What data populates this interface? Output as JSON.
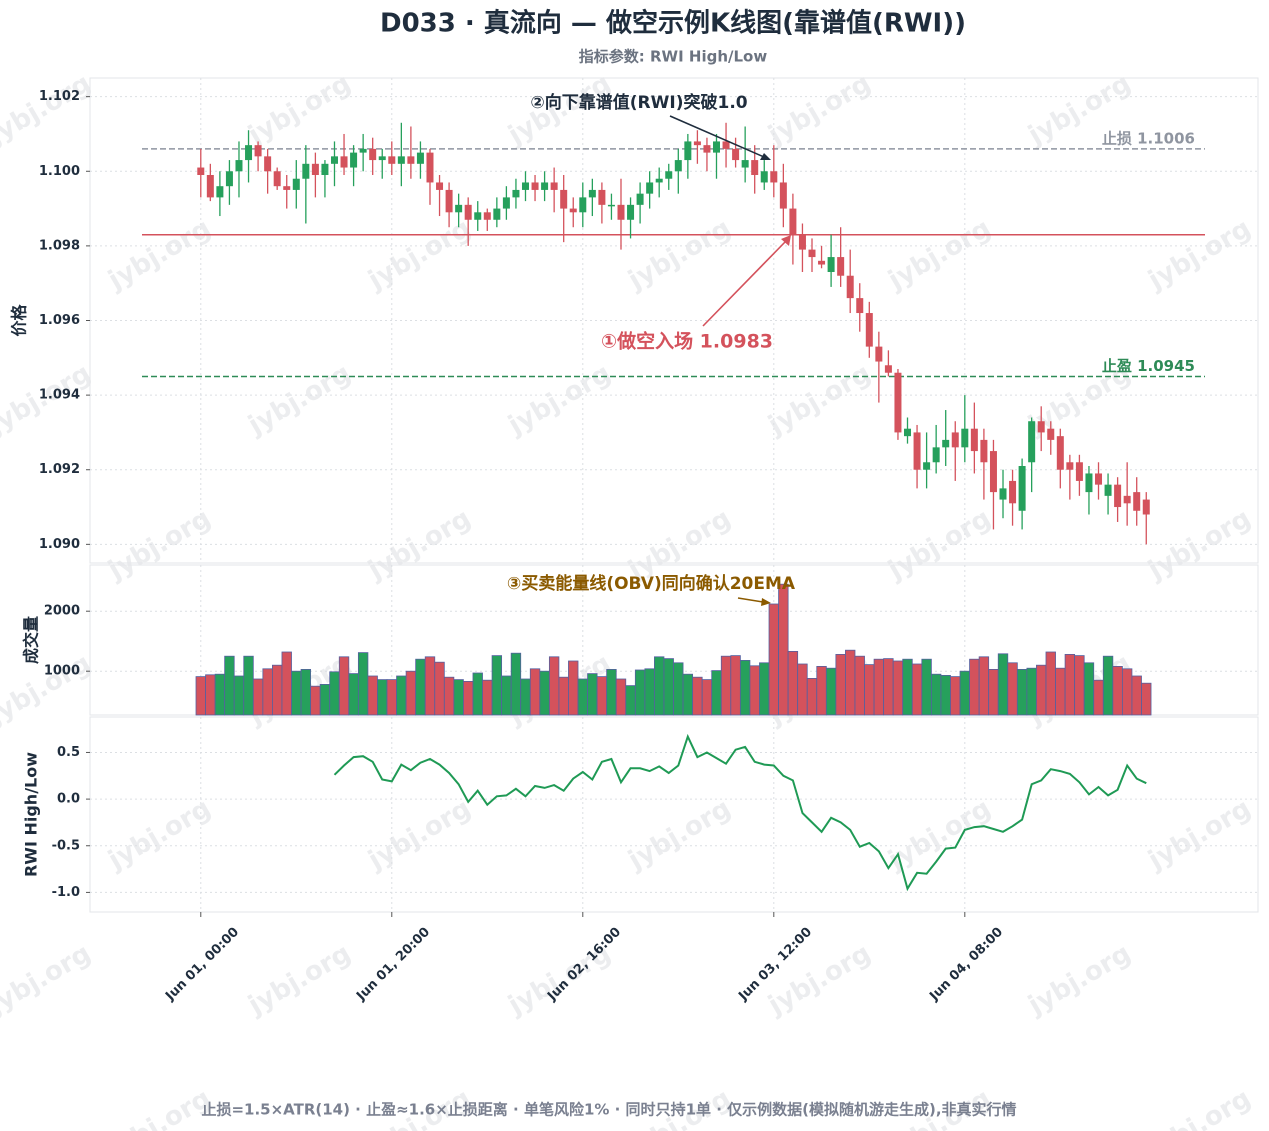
{
  "title": "D033 · 真流向 — 做空示例K线图(靠谱值(RWI))",
  "subtitle": "指标参数: RWI High/Low",
  "footer": "止损=1.5×ATR(14) · 止盈≈1.6×止损距离 · 单笔风险1% · 同时只持1单 · 仅示例数据(模拟随机游走生成),非真实行情",
  "watermark": "jybj.org",
  "chart_data": [
    {
      "type": "candlestick",
      "ylabel": "价格",
      "up_color": "#26a05c",
      "down_color": "#d4525c",
      "grid": true,
      "xlim": [
        -11.6,
        110.7
      ],
      "ylim": [
        1.0895,
        1.1025
      ],
      "yticks": [
        {
          "value": 1.09,
          "label": "1.090"
        },
        {
          "value": 1.092,
          "label": "1.092"
        },
        {
          "value": 1.094,
          "label": "1.094"
        },
        {
          "value": 1.096,
          "label": "1.096"
        },
        {
          "value": 1.098,
          "label": "1.098"
        },
        {
          "value": 1.1,
          "label": "1.100"
        },
        {
          "value": 1.102,
          "label": "1.102"
        }
      ],
      "x": [
        0,
        1,
        2,
        3,
        4,
        5,
        6,
        7,
        8,
        9,
        10,
        11,
        12,
        13,
        14,
        15,
        16,
        17,
        18,
        19,
        20,
        21,
        22,
        23,
        24,
        25,
        26,
        27,
        28,
        29,
        30,
        31,
        32,
        33,
        34,
        35,
        36,
        37,
        38,
        39,
        40,
        41,
        42,
        43,
        44,
        45,
        46,
        47,
        48,
        49,
        50,
        51,
        52,
        53,
        54,
        55,
        56,
        57,
        58,
        59,
        60,
        61,
        62,
        63,
        64,
        65,
        66,
        67,
        68,
        69,
        70,
        71,
        72,
        73,
        74,
        75,
        76,
        77,
        78,
        79,
        80,
        81,
        82,
        83,
        84,
        85,
        86,
        87,
        88,
        89,
        90,
        91,
        92,
        93,
        94,
        95,
        96,
        97,
        98,
        99
      ],
      "open": [
        1.1001,
        1.0999,
        1.0993,
        1.0996,
        1.1,
        1.1003,
        1.1007,
        1.1004,
        1.1,
        1.0996,
        1.0995,
        1.0998,
        1.1002,
        1.0999,
        1.1002,
        1.1004,
        1.1001,
        1.1005,
        1.1006,
        1.1003,
        1.1004,
        1.1002,
        1.1004,
        1.1002,
        1.1005,
        1.0997,
        1.0995,
        1.0989,
        1.0991,
        1.0987,
        1.0989,
        1.0987,
        1.099,
        1.0993,
        1.0995,
        1.0997,
        1.0995,
        1.0997,
        1.0995,
        1.099,
        1.0989,
        1.0993,
        1.0995,
        1.0991,
        1.0991,
        1.0987,
        1.0991,
        1.0994,
        1.0997,
        1.0998,
        1.1,
        1.1003,
        1.1008,
        1.1007,
        1.1005,
        1.1008,
        1.1006,
        1.1001,
        1.1003,
        1.0997,
        1.1,
        1.0997,
        1.099,
        1.0983,
        1.0979,
        1.0976,
        1.0973,
        1.0977,
        1.0972,
        1.0966,
        1.0962,
        1.0953,
        1.0948,
        1.0946,
        1.0929,
        1.093,
        1.092,
        1.0922,
        1.0926,
        1.093,
        1.0926,
        1.0931,
        1.0928,
        1.0925,
        1.0912,
        1.0917,
        1.0909,
        1.0922,
        1.0933,
        1.0931,
        1.0929,
        1.0922,
        1.0922,
        1.0914,
        1.0919,
        1.0913,
        1.0916,
        1.0913,
        1.0914,
        1.0912
      ],
      "high": [
        1.1006,
        1.1002,
        1.1,
        1.1003,
        1.1008,
        1.1011,
        1.1008,
        1.1006,
        1.1001,
        1.0999,
        1.1003,
        1.1007,
        1.1005,
        1.1003,
        1.1008,
        1.101,
        1.1007,
        1.101,
        1.1009,
        1.1006,
        1.1008,
        1.1013,
        1.1012,
        1.1008,
        1.1006,
        1.0999,
        1.0997,
        1.0994,
        1.0993,
        1.0992,
        1.099,
        1.0993,
        1.0996,
        1.0998,
        1.1,
        1.0999,
        1.1,
        1.1001,
        1.0999,
        1.0993,
        1.0997,
        1.0998,
        1.0997,
        1.0994,
        1.0998,
        1.0993,
        1.0997,
        1.1,
        1.1001,
        1.1002,
        1.1006,
        1.101,
        1.1011,
        1.1009,
        1.101,
        1.1013,
        1.1009,
        1.1012,
        1.1007,
        1.1003,
        1.1007,
        1.1002,
        1.0994,
        1.0986,
        1.0982,
        1.098,
        1.0983,
        1.0985,
        1.0979,
        1.097,
        1.0965,
        1.0957,
        1.0952,
        1.0947,
        1.0934,
        1.0932,
        1.093,
        1.0932,
        1.0936,
        1.0933,
        1.094,
        1.0938,
        1.0931,
        1.0928,
        1.092,
        1.092,
        1.0923,
        1.0934,
        1.0937,
        1.0933,
        1.0931,
        1.0924,
        1.0924,
        1.0921,
        1.0922,
        1.0919,
        1.0918,
        1.0922,
        1.0918,
        1.0914
      ],
      "low": [
        1.0993,
        1.0992,
        1.0988,
        1.0991,
        1.0993,
        1.0997,
        1.1,
        1.0994,
        1.0995,
        1.099,
        1.099,
        1.0986,
        1.0993,
        1.0993,
        1.0996,
        1.0999,
        1.0996,
        1.1,
        1.0999,
        1.0998,
        1.0999,
        1.0996,
        1.0998,
        1.0998,
        1.0991,
        1.0988,
        1.0985,
        1.0985,
        1.098,
        1.0984,
        1.0984,
        1.0985,
        1.0987,
        1.099,
        1.0992,
        1.0992,
        1.0992,
        1.0989,
        1.0981,
        1.0985,
        1.0985,
        1.0988,
        1.0986,
        1.0987,
        1.0979,
        1.0982,
        1.0986,
        1.099,
        1.0993,
        1.0995,
        1.0994,
        1.0998,
        1.1002,
        1.1,
        1.0998,
        1.1001,
        1.1001,
        1.0997,
        1.0994,
        1.0995,
        1.0993,
        1.0985,
        1.0975,
        1.0973,
        1.0973,
        1.0974,
        1.0969,
        1.0969,
        1.0962,
        1.0957,
        1.095,
        1.0938,
        1.0945,
        1.0928,
        1.0927,
        1.0915,
        1.0915,
        1.0919,
        1.0921,
        1.0917,
        1.0922,
        1.0919,
        1.0912,
        1.0904,
        1.0907,
        1.0905,
        1.0904,
        1.0914,
        1.0925,
        1.0924,
        1.0915,
        1.0912,
        1.0913,
        1.0908,
        1.0912,
        1.0908,
        1.0906,
        1.0905,
        1.0905,
        1.09
      ],
      "close": [
        1.0999,
        1.0993,
        1.0996,
        1.1,
        1.1003,
        1.1007,
        1.1004,
        1.1,
        1.0996,
        1.0995,
        1.0998,
        1.1002,
        1.0999,
        1.1002,
        1.1004,
        1.1001,
        1.1005,
        1.1006,
        1.1003,
        1.1004,
        1.1002,
        1.1004,
        1.1002,
        1.1005,
        1.0997,
        1.0995,
        1.0989,
        1.0991,
        1.0987,
        1.0989,
        1.0987,
        1.099,
        1.0993,
        1.0995,
        1.0997,
        1.0995,
        1.0997,
        1.0995,
        1.099,
        1.0989,
        1.0993,
        1.0995,
        1.0991,
        1.0991,
        1.0987,
        1.0991,
        1.0994,
        1.0997,
        1.0998,
        1.1,
        1.1003,
        1.1008,
        1.1007,
        1.1005,
        1.1008,
        1.1006,
        1.1003,
        1.1003,
        1.0999,
        1.1,
        1.0997,
        1.099,
        1.0983,
        1.0979,
        1.0977,
        1.0975,
        1.0977,
        1.0972,
        1.0966,
        1.0962,
        1.0953,
        1.0949,
        1.0946,
        1.093,
        1.0931,
        1.092,
        1.0922,
        1.0926,
        1.0928,
        1.0926,
        1.0931,
        1.0925,
        1.0922,
        1.0914,
        1.0915,
        1.0911,
        1.0921,
        1.0933,
        1.093,
        1.0928,
        1.092,
        1.092,
        1.0917,
        1.0919,
        1.0916,
        1.0916,
        1.091,
        1.0911,
        1.0909,
        1.0908
      ],
      "levels": [
        {
          "name": "止损 1.1006",
          "value": 1.1006,
          "color": "#8f95a0",
          "style": "dashed"
        },
        {
          "value": 1.0983,
          "color": "#d4525c",
          "style": "solid"
        },
        {
          "name": "止盈 1.0945",
          "value": 1.0945,
          "color": "#2e8b57",
          "style": "dashed"
        }
      ],
      "annotations": [
        {
          "text": "②向下靠谱值(RWI)突破1.0",
          "color": "#1f2d3d"
        },
        {
          "text": "①做空入场 1.0983",
          "color": "#d4525c"
        }
      ]
    },
    {
      "type": "bar",
      "ylabel": "成交量",
      "grid": true,
      "edge_color": "#5560a0",
      "xlim": [
        -11.6,
        110.7
      ],
      "ylim": [
        270,
        2770
      ],
      "yticks": [
        1000,
        2000
      ],
      "x": [
        0,
        1,
        2,
        3,
        4,
        5,
        6,
        7,
        8,
        9,
        10,
        11,
        12,
        13,
        14,
        15,
        16,
        17,
        18,
        19,
        20,
        21,
        22,
        23,
        24,
        25,
        26,
        27,
        28,
        29,
        30,
        31,
        32,
        33,
        34,
        35,
        36,
        37,
        38,
        39,
        40,
        41,
        42,
        43,
        44,
        45,
        46,
        47,
        48,
        49,
        50,
        51,
        52,
        53,
        54,
        55,
        56,
        57,
        58,
        59,
        60,
        61,
        62,
        63,
        64,
        65,
        66,
        67,
        68,
        69,
        70,
        71,
        72,
        73,
        74,
        75,
        76,
        77,
        78,
        79,
        80,
        81,
        82,
        83,
        84,
        85,
        86,
        87,
        88,
        89,
        90,
        91,
        92,
        93,
        94,
        95,
        96,
        97,
        98,
        99
      ],
      "values": [
        910,
        940,
        950,
        1250,
        920,
        1250,
        870,
        1040,
        1100,
        1320,
        1000,
        1030,
        750,
        780,
        990,
        1240,
        960,
        1310,
        920,
        860,
        860,
        920,
        1000,
        1200,
        1240,
        1150,
        900,
        860,
        830,
        970,
        850,
        1260,
        920,
        1300,
        870,
        1040,
        1000,
        1240,
        900,
        1170,
        870,
        960,
        910,
        1030,
        870,
        760,
        1020,
        1040,
        1240,
        1210,
        1140,
        950,
        900,
        860,
        1010,
        1250,
        1260,
        1180,
        1090,
        1140,
        2120,
        2450,
        1330,
        1120,
        880,
        1080,
        1050,
        1280,
        1350,
        1250,
        1110,
        1200,
        1210,
        1170,
        1200,
        1120,
        1200,
        950,
        930,
        910,
        1000,
        1200,
        1240,
        1030,
        1290,
        1140,
        1030,
        1050,
        1100,
        1320,
        1050,
        1280,
        1260,
        1140,
        850,
        1250,
        1080,
        1040,
        920,
        800
      ],
      "annotations": [
        {
          "text": "③买卖能量线(OBV)同向确认20EMA",
          "color": "#8b5a00"
        }
      ]
    },
    {
      "type": "line",
      "ylabel": "RWI High/Low",
      "grid": true,
      "color": "#1f9a55",
      "xlim": [
        -11.6,
        110.7
      ],
      "ylim": [
        -1.21,
        0.88
      ],
      "yticks": [
        {
          "value": -1.0,
          "label": "-1.0"
        },
        -0.5,
        {
          "value": 0,
          "label": "0.0"
        },
        0.5
      ],
      "xticks": [
        {
          "value": 0,
          "label": "Jun 01, 00:00"
        },
        {
          "value": 20,
          "label": "Jun 01, 20:00"
        },
        {
          "value": 40,
          "label": "Jun 02, 16:00"
        },
        {
          "value": 60,
          "label": "Jun 03, 12:00"
        },
        {
          "value": 80,
          "label": "Jun 04, 08:00"
        }
      ],
      "x": [
        0,
        1,
        2,
        3,
        4,
        5,
        6,
        7,
        8,
        9,
        10,
        11,
        12,
        13,
        14,
        15,
        16,
        17,
        18,
        19,
        20,
        21,
        22,
        23,
        24,
        25,
        26,
        27,
        28,
        29,
        30,
        31,
        32,
        33,
        34,
        35,
        36,
        37,
        38,
        39,
        40,
        41,
        42,
        43,
        44,
        45,
        46,
        47,
        48,
        49,
        50,
        51,
        52,
        53,
        54,
        55,
        56,
        57,
        58,
        59,
        60,
        61,
        62,
        63,
        64,
        65,
        66,
        67,
        68,
        69,
        70,
        71,
        72,
        73,
        74,
        75,
        76,
        77,
        78,
        79,
        80,
        81,
        82,
        83,
        84,
        85,
        86,
        87,
        88,
        89,
        90,
        91,
        92,
        93,
        94,
        95,
        96,
        97,
        98,
        99
      ],
      "values": [
        null,
        null,
        null,
        null,
        null,
        null,
        null,
        null,
        null,
        null,
        null,
        null,
        null,
        null,
        0.26,
        0.36,
        0.45,
        0.46,
        0.4,
        0.21,
        0.19,
        0.37,
        0.31,
        0.39,
        0.43,
        0.37,
        0.28,
        0.16,
        -0.03,
        0.09,
        -0.06,
        0.03,
        0.04,
        0.11,
        0.03,
        0.14,
        0.12,
        0.15,
        0.09,
        0.22,
        0.29,
        0.21,
        0.4,
        0.43,
        0.18,
        0.33,
        0.33,
        0.3,
        0.35,
        0.28,
        0.36,
        0.67,
        0.45,
        0.5,
        0.44,
        0.38,
        0.53,
        0.56,
        0.4,
        0.37,
        0.36,
        0.25,
        0.2,
        -0.15,
        -0.25,
        -0.35,
        -0.2,
        -0.25,
        -0.33,
        -0.51,
        -0.47,
        -0.56,
        -0.74,
        -0.59,
        -0.96,
        -0.79,
        -0.8,
        -0.67,
        -0.53,
        -0.52,
        -0.33,
        -0.3,
        -0.29,
        -0.32,
        -0.35,
        -0.29,
        -0.22,
        0.16,
        0.2,
        0.32,
        0.3,
        0.27,
        0.18,
        0.05,
        0.13,
        0.04,
        0.1,
        0.36,
        0.22,
        0.17
      ]
    }
  ]
}
